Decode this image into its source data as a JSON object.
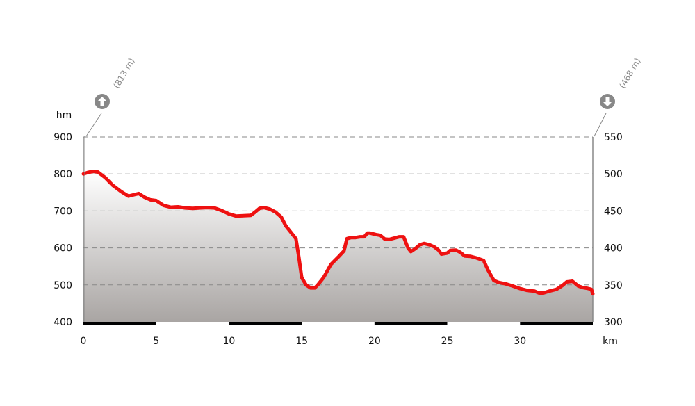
{
  "chart_data": {
    "type": "area",
    "title": "",
    "xlabel": "km",
    "ylabel": "hm",
    "x_ticks": [
      "0",
      "5",
      "10",
      "15",
      "20",
      "25",
      "30"
    ],
    "y_left_ticks": [
      "400",
      "500",
      "600",
      "700",
      "800",
      "900"
    ],
    "y_right_ticks": [
      "300",
      "350",
      "400",
      "450",
      "500",
      "550"
    ],
    "xlim": [
      0,
      35
    ],
    "ylim": [
      400,
      900
    ],
    "grid": true,
    "start_marker": {
      "label": "(813 m)",
      "icon": "arrow-up-icon"
    },
    "end_marker": {
      "label": "(468 m)",
      "icon": "arrow-down-icon"
    },
    "colors": {
      "line": "#ee1111",
      "fill_top": "#ffffff",
      "fill_bottom": "#a9a5a3",
      "marker": "#888888",
      "grid": "#888888",
      "scale_bar": "#000000"
    },
    "series": [
      {
        "x": [
          0,
          0.3,
          0.7,
          1.0,
          1.5,
          2.0,
          2.6,
          3.1,
          3.4,
          3.8,
          4.2,
          4.6,
          5.0,
          5.5,
          6.0,
          6.5,
          7.0,
          7.5,
          8.0,
          8.5,
          9.0,
          9.5,
          10.0,
          10.5,
          11.0,
          11.5,
          11.8,
          12.1,
          12.4,
          12.8,
          13.2,
          13.6,
          13.9,
          14.2,
          14.6,
          14.8,
          15.0,
          15.3,
          15.6,
          15.9,
          16.1,
          16.5,
          17.0,
          17.5,
          17.9,
          18.1,
          18.4,
          18.7,
          19.0,
          19.3,
          19.5,
          19.7,
          20.1,
          20.4,
          20.7,
          21.0,
          21.3,
          21.7,
          22.0,
          22.3,
          22.5,
          22.8,
          23.1,
          23.4,
          23.8,
          24.1,
          24.4,
          24.6,
          25.0,
          25.2,
          25.6,
          25.9,
          26.2,
          26.6,
          27.0,
          27.5,
          27.8,
          28.2,
          28.5,
          29.0,
          29.5,
          30.0,
          30.5,
          31.0,
          31.3,
          31.6,
          32.0,
          32.5,
          32.9,
          33.2,
          33.6,
          34.0,
          34.3,
          34.6,
          34.9,
          35.0
        ],
        "values": [
          800,
          804,
          807,
          805,
          790,
          770,
          752,
          740,
          743,
          747,
          737,
          730,
          728,
          715,
          710,
          711,
          708,
          707,
          708,
          709,
          708,
          701,
          692,
          686,
          687,
          688,
          697,
          707,
          709,
          705,
          697,
          683,
          660,
          645,
          625,
          575,
          520,
          500,
          492,
          492,
          500,
          520,
          555,
          575,
          592,
          625,
          628,
          628,
          630,
          630,
          640,
          640,
          636,
          634,
          624,
          623,
          626,
          630,
          630,
          600,
          590,
          598,
          608,
          612,
          608,
          603,
          594,
          583,
          586,
          593,
          594,
          588,
          578,
          577,
          573,
          566,
          540,
          512,
          507,
          503,
          497,
          490,
          485,
          483,
          478,
          478,
          483,
          488,
          498,
          508,
          510,
          497,
          493,
          491,
          488,
          476
        ]
      }
    ]
  }
}
